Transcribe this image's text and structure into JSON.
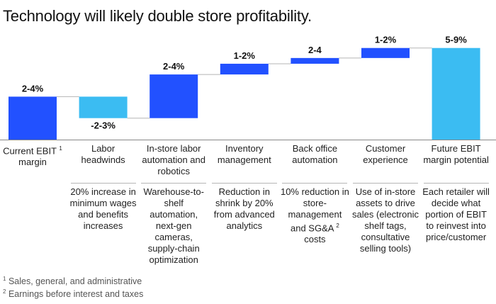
{
  "title": "Technology will likely double store profitability.",
  "colors": {
    "dark_blue": "#2251ff",
    "light_blue": "#3bbcf2",
    "connector": "#b5b5b5",
    "baseline": "#888888"
  },
  "chart_data": {
    "type": "bar",
    "subtype": "waterfall",
    "title": "Technology will likely double store profitability.",
    "categories": [
      {
        "label": "Current EBIT",
        "sup": "1",
        "label2": "margin",
        "range": "2-4%",
        "kind": "total",
        "start": 0,
        "end": 3,
        "color": "dark"
      },
      {
        "label": "Labor",
        "label2": "headwinds",
        "range": "-2-3%",
        "kind": "decrease",
        "start": 3,
        "end": 1.5,
        "color": "light"
      },
      {
        "label": "In-store labor",
        "label2": "automation and robotics",
        "range": "2-4%",
        "kind": "increase",
        "start": 1.5,
        "end": 4.55,
        "color": "dark"
      },
      {
        "label": "Inventory",
        "label2": "management",
        "range": "1-2%",
        "kind": "increase",
        "start": 4.55,
        "end": 5.3,
        "color": "dark"
      },
      {
        "label": "Back office",
        "label2": "automation",
        "range": "2-4",
        "kind": "increase",
        "start": 5.3,
        "end": 5.7,
        "color": "dark"
      },
      {
        "label": "Customer",
        "label2": "experience",
        "range": "1-2%",
        "kind": "increase",
        "start": 5.7,
        "end": 6.4,
        "color": "dark"
      },
      {
        "label": "Future EBIT",
        "label2": "margin potential",
        "range": "5-9%",
        "kind": "total",
        "start": 0,
        "end": 6.4,
        "color": "light"
      }
    ]
  },
  "descriptions": [
    {
      "text": "20% increase in minimum wages and benefits increases"
    },
    {
      "text": "Warehouse-to-shelf automation, next-gen cameras, supply-chain optimization"
    },
    {
      "text": "Reduction in shrink by 20% from advanced analytics"
    },
    {
      "text": "10% reduction in store-management and SG&A",
      "sup": "2",
      "tail": "costs"
    },
    {
      "text": "Use of in-store assets to drive sales (electronic shelf tags, consultative selling tools)"
    },
    {
      "text": "Each retailer will decide what portion of EBIT to reinvest into price/customer"
    }
  ],
  "footnotes": [
    {
      "sup": "1",
      "text": "Sales, general, and administrative"
    },
    {
      "sup": "2",
      "text": "Earnings before interest and taxes"
    }
  ]
}
